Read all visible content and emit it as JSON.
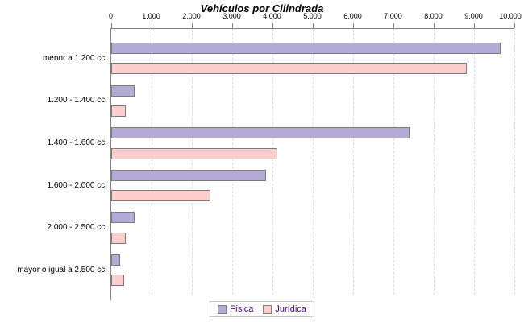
{
  "chart_data": {
    "type": "bar",
    "orientation": "horizontal",
    "title": "Vehículos por Cilindrada",
    "categories": [
      "menor a 1.200 cc.",
      "1.200 - 1.400 cc.",
      "1.400 - 1.600 cc.",
      "1.600 - 2.000 cc.",
      "2.000 - 2.500 cc.",
      "mayor o igual a 2.500 cc."
    ],
    "series": [
      {
        "name": "Física",
        "color": "#b4aad6",
        "values": [
          9620,
          540,
          7350,
          3800,
          530,
          180
        ]
      },
      {
        "name": "Jurídica",
        "color": "#fbcdcd",
        "values": [
          8780,
          320,
          4070,
          2410,
          310,
          285
        ]
      }
    ],
    "xlim": [
      0,
      10000
    ],
    "x_tick_labels": [
      "0",
      "1.000",
      "2.000",
      "3.000",
      "4.000",
      "5.000",
      "6.000",
      "7.000",
      "8.000",
      "9.000",
      "10.000"
    ],
    "grid": "vertical dashed, on",
    "legend_position": "bottom center",
    "colors": {
      "fisica_fill": "#b4aad6",
      "juridica_fill": "#fbcdcd",
      "bar_border": "#7a7a7a",
      "axis": "#808080",
      "gridline": "#dedede",
      "legend_text": "#4b0082",
      "legend_border": "#c8c8cf",
      "title_text": "#000000"
    }
  }
}
